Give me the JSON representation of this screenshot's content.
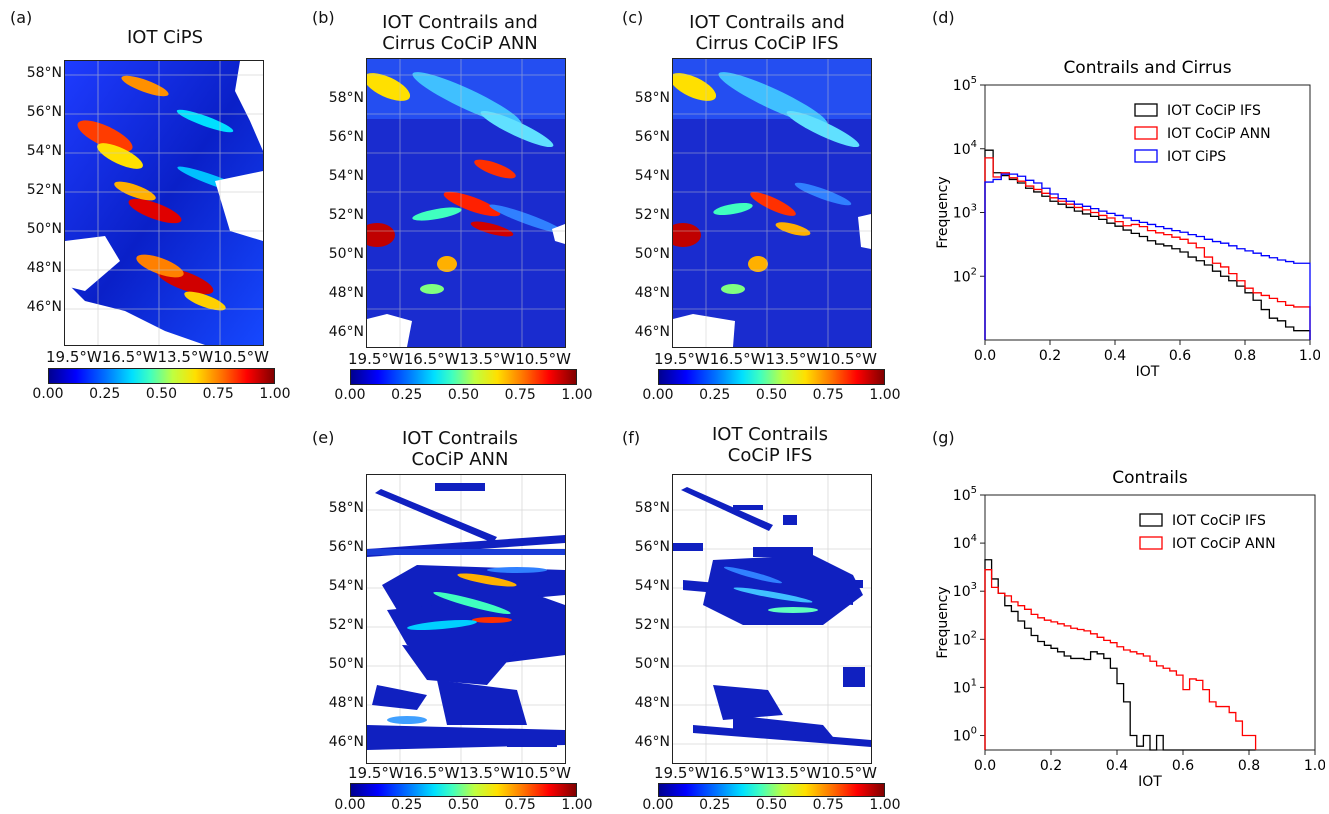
{
  "panels": {
    "a": {
      "label": "(a)",
      "title": "IOT CiPS"
    },
    "b": {
      "label": "(b)",
      "title": "IOT Contrails and Cirrus CoCiP ANN"
    },
    "c": {
      "label": "(c)",
      "title": "IOT Contrails and Cirrus CoCiP IFS"
    },
    "d": {
      "label": "(d)"
    },
    "e": {
      "label": "(e)",
      "title": "IOT Contrails CoCiP ANN"
    },
    "f": {
      "label": "(f)",
      "title": "IOT Contrails CoCiP  IFS"
    },
    "g": {
      "label": "(g)"
    }
  },
  "map_axes": {
    "lat_labels": [
      "58°N",
      "56°N",
      "54°N",
      "52°N",
      "50°N",
      "48°N",
      "46°N"
    ],
    "lon_labels": [
      "19.5°W",
      "16.5°W",
      "13.5°W",
      "10.5°W"
    ],
    "colorbar_ticks": [
      "0.00",
      "0.25",
      "0.50",
      "0.75",
      "1.00"
    ],
    "colormap": "jet",
    "colorbar_range": [
      0,
      1
    ]
  },
  "chart_data": [
    {
      "type": "histogram",
      "title": "Contrails and Cirrus",
      "xlabel": "IOT",
      "ylabel": "Frequency",
      "yscale": "log",
      "xlim": [
        0,
        1
      ],
      "ylim": [
        10,
        100000
      ],
      "xticks": [
        "0.0",
        "0.2",
        "0.4",
        "0.6",
        "0.8",
        "1.0"
      ],
      "yticks": [
        "10^2",
        "10^3",
        "10^4",
        "10^5"
      ],
      "legend_position": "top-right",
      "bin_edges": [
        0.0,
        0.025,
        0.05,
        0.075,
        0.1,
        0.125,
        0.15,
        0.175,
        0.2,
        0.225,
        0.25,
        0.275,
        0.3,
        0.325,
        0.35,
        0.375,
        0.4,
        0.425,
        0.45,
        0.475,
        0.5,
        0.525,
        0.55,
        0.575,
        0.6,
        0.625,
        0.65,
        0.675,
        0.7,
        0.725,
        0.75,
        0.775,
        0.8,
        0.825,
        0.85,
        0.875,
        0.9,
        0.925,
        0.95,
        0.975,
        1.0
      ],
      "series": [
        {
          "name": "IOT CoCiP IFS",
          "color": "#000000",
          "values": [
            9500,
            4200,
            3800,
            3300,
            2900,
            2400,
            2100,
            1800,
            1500,
            1350,
            1200,
            1050,
            950,
            870,
            780,
            680,
            610,
            530,
            470,
            420,
            360,
            320,
            300,
            270,
            240,
            200,
            175,
            150,
            120,
            100,
            85,
            70,
            55,
            42,
            30,
            22,
            20,
            16,
            14,
            14
          ]
        },
        {
          "name": "IOT CoCiP ANN",
          "color": "#ff0000",
          "values": [
            7200,
            3600,
            4200,
            3500,
            3100,
            2600,
            2300,
            2000,
            1700,
            1500,
            1350,
            1200,
            1100,
            1000,
            900,
            820,
            720,
            620,
            650,
            600,
            520,
            480,
            450,
            410,
            380,
            330,
            280,
            200,
            160,
            140,
            110,
            85,
            65,
            55,
            50,
            45,
            40,
            35,
            33,
            33
          ]
        },
        {
          "name": "IOT CiPS",
          "color": "#0000ff",
          "values": [
            3000,
            3300,
            4000,
            4000,
            3700,
            3200,
            2900,
            2400,
            1950,
            1650,
            1500,
            1350,
            1250,
            1150,
            1050,
            970,
            900,
            820,
            750,
            700,
            650,
            600,
            560,
            520,
            490,
            450,
            420,
            380,
            350,
            330,
            300,
            270,
            250,
            230,
            210,
            195,
            180,
            170,
            160,
            160
          ]
        }
      ]
    },
    {
      "type": "histogram",
      "title": "Contrails",
      "xlabel": "IOT",
      "ylabel": "Frequency",
      "yscale": "log",
      "xlim": [
        0,
        1
      ],
      "ylim": [
        0.5,
        100000
      ],
      "xticks": [
        "0.0",
        "0.2",
        "0.4",
        "0.6",
        "0.8",
        "1.0"
      ],
      "yticks": [
        "10^0",
        "10^1",
        "10^2",
        "10^3",
        "10^4",
        "10^5"
      ],
      "legend_position": "top-right",
      "bin_edges": [
        0.0,
        0.02,
        0.04,
        0.06,
        0.08,
        0.1,
        0.12,
        0.14,
        0.16,
        0.18,
        0.2,
        0.22,
        0.24,
        0.26,
        0.28,
        0.3,
        0.32,
        0.34,
        0.36,
        0.38,
        0.4,
        0.42,
        0.44,
        0.46,
        0.48,
        0.5,
        0.52,
        0.54,
        0.56,
        0.58,
        0.6,
        0.62,
        0.64,
        0.66,
        0.68,
        0.7,
        0.72,
        0.74,
        0.76,
        0.78,
        0.8,
        0.82
      ],
      "series": [
        {
          "name": "IOT CoCiP IFS",
          "color": "#000000",
          "values": [
            4500,
            1800,
            900,
            500,
            380,
            240,
            170,
            120,
            90,
            75,
            65,
            55,
            45,
            40,
            40,
            38,
            55,
            50,
            40,
            25,
            12,
            5,
            1,
            0.6,
            1,
            0.5,
            1,
            0.5,
            0.5,
            0.5,
            0.5,
            0.5,
            0.5,
            0.5,
            0.5,
            0.5,
            0.5,
            0.5,
            0.5,
            0.5,
            0.5
          ]
        },
        {
          "name": "IOT CoCiP ANN",
          "color": "#ff0000",
          "values": [
            2800,
            1200,
            900,
            800,
            600,
            500,
            420,
            330,
            280,
            250,
            230,
            210,
            190,
            170,
            160,
            150,
            130,
            110,
            95,
            85,
            70,
            60,
            55,
            50,
            45,
            35,
            28,
            25,
            22,
            18,
            9,
            15,
            14,
            9,
            5,
            4,
            4,
            3,
            2,
            1,
            1
          ]
        }
      ]
    }
  ]
}
